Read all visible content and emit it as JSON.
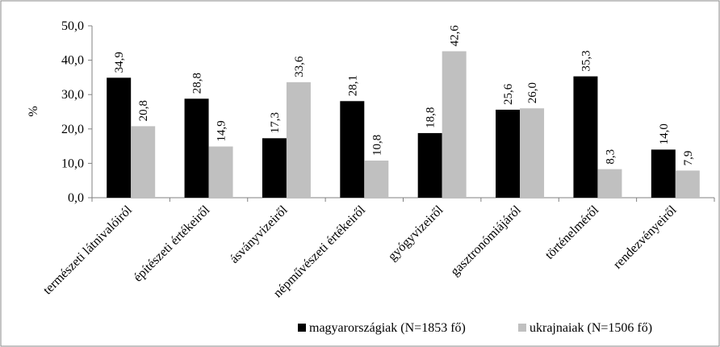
{
  "chart_data": {
    "type": "bar",
    "ylabel": "%",
    "xlabel": "",
    "ylim": [
      0,
      50
    ],
    "ytick_step": 10,
    "ytick_labels": [
      "0,0",
      "10,0",
      "20,0",
      "30,0",
      "40,0",
      "50,0"
    ],
    "grid": false,
    "legend_position": "bottom-right",
    "categories": [
      "természeti látnivalóiról",
      "építészeti értékeiről",
      "ásványvizeiről",
      "népművészeti értékeiről",
      "gyógyvizeiről",
      "gasztronómiájáról",
      "történelméről",
      "rendezvényeiről"
    ],
    "series": [
      {
        "name": "magyarországiak (N=1853 fő)",
        "color": "#000000",
        "values": [
          34.9,
          28.8,
          17.3,
          28.1,
          18.8,
          25.6,
          35.3,
          14.0
        ],
        "labels": [
          "34,9",
          "28,8",
          "17,3",
          "28,1",
          "18,8",
          "25,6",
          "35,3",
          "14,0"
        ]
      },
      {
        "name": "ukrajnaiak (N=1506 fő)",
        "color": "#c0c0c0",
        "values": [
          20.8,
          14.9,
          33.6,
          10.8,
          42.6,
          26.0,
          8.3,
          7.9
        ],
        "labels": [
          "20,8",
          "14,9",
          "33,6",
          "10,8",
          "42,6",
          "26,0",
          "8,3",
          "7,9"
        ]
      }
    ]
  }
}
